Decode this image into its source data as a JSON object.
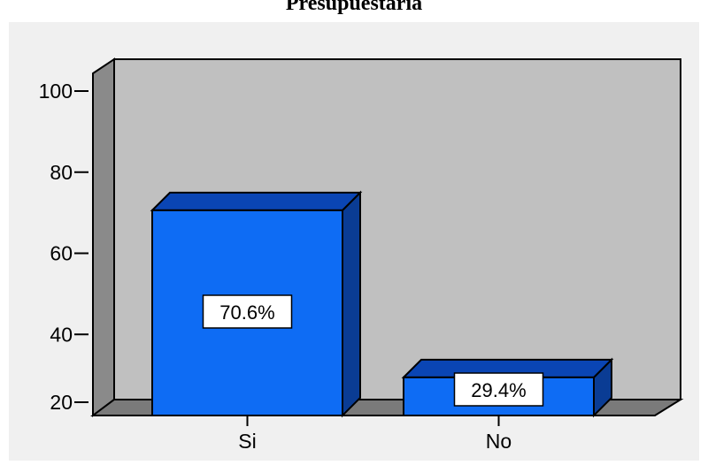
{
  "chart_data": {
    "type": "bar",
    "title": "Presupuestaria",
    "categories": [
      "Si",
      "No"
    ],
    "values": [
      70.6,
      29.4
    ],
    "data_labels": [
      "70.6%",
      "29.4%"
    ],
    "ylim": [
      20,
      100
    ],
    "yticks": [
      20,
      40,
      60,
      80,
      100
    ],
    "xlabel": "",
    "ylabel": "",
    "grid": false,
    "legend": "none",
    "style": "3d",
    "colors": {
      "bar_front": "#0e6cf4",
      "bar_top": "#0a45b4",
      "bar_side": "#0a3c94",
      "plot_back": "#c0c0c0",
      "plot_floor": "#7a7a7a",
      "plot_wall": "#8a8a8a",
      "chart_bg": "#f0f0f0"
    }
  }
}
